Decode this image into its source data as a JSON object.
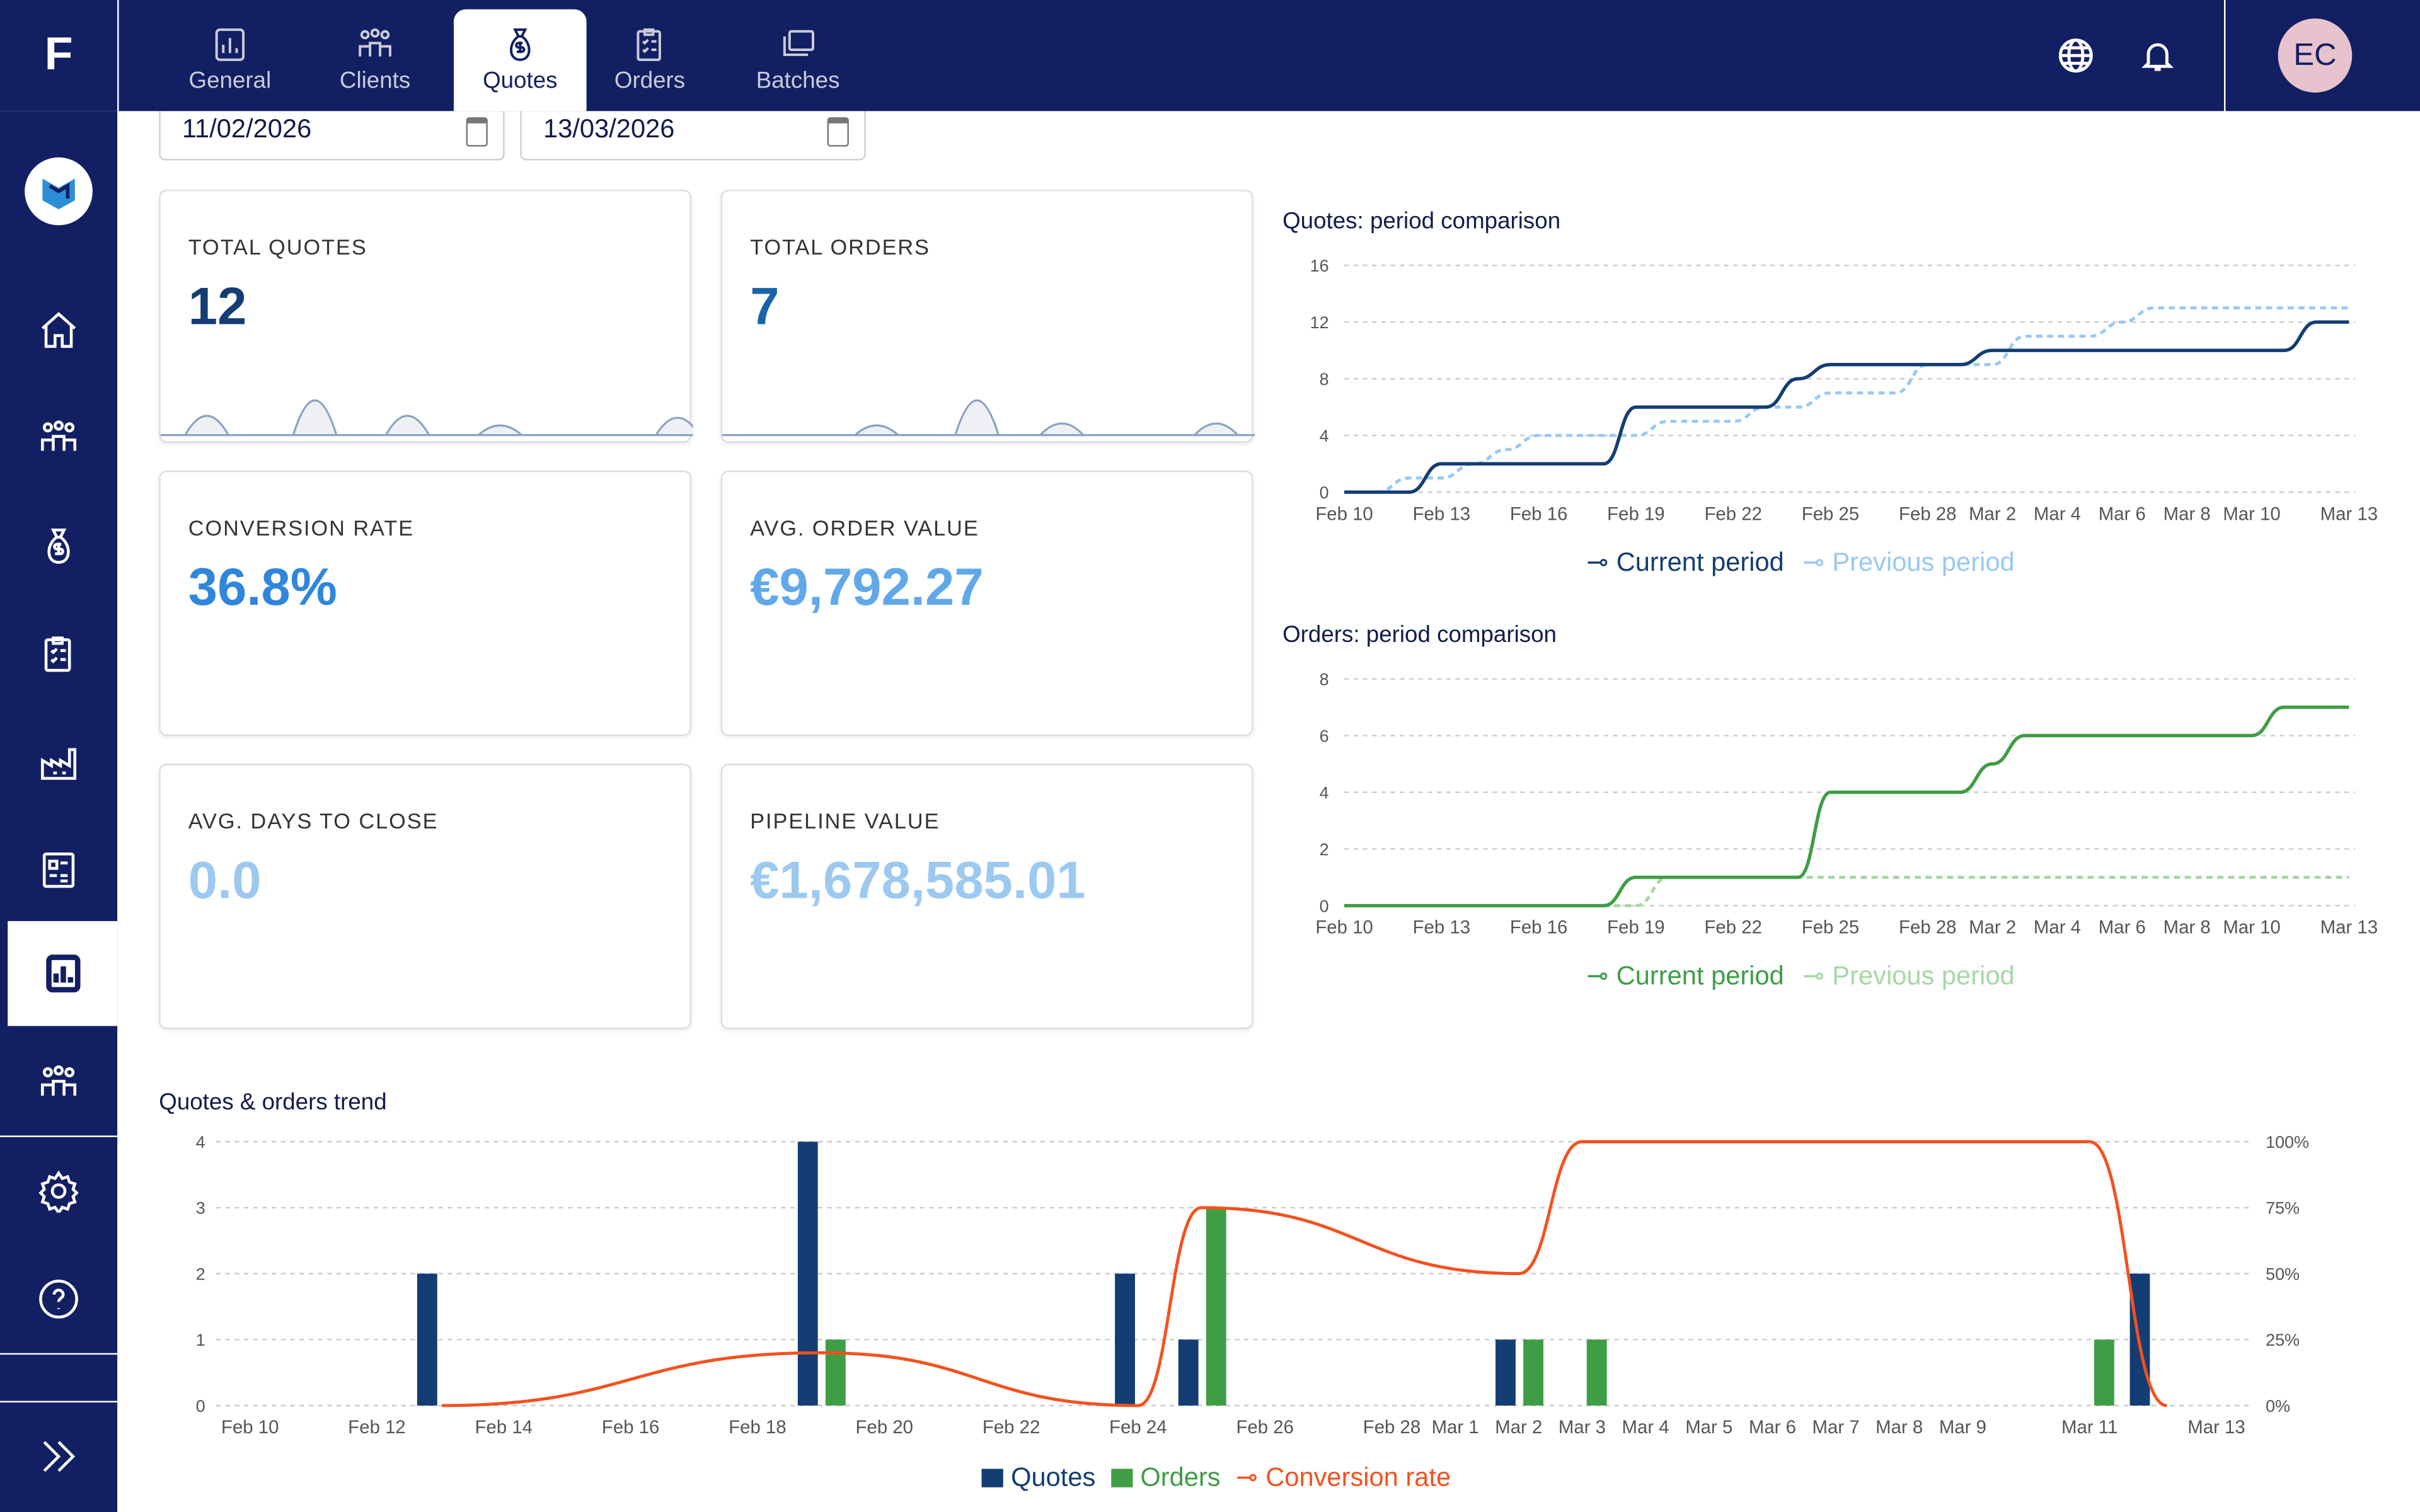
{
  "app": {
    "logo": "F",
    "user_initials": "EC"
  },
  "tabs": [
    {
      "label": "General",
      "icon": "bar-chart-icon"
    },
    {
      "label": "Clients",
      "icon": "users-icon"
    },
    {
      "label": "Quotes",
      "icon": "money-bag-icon",
      "active": true
    },
    {
      "label": "Orders",
      "icon": "clipboard-icon"
    },
    {
      "label": "Batches",
      "icon": "layers-icon"
    }
  ],
  "header_icons": [
    "globe-icon",
    "bell-icon"
  ],
  "sidebar": [
    {
      "icon": "brand-logo-icon"
    },
    {
      "icon": "home-icon"
    },
    {
      "icon": "users-icon"
    },
    {
      "icon": "money-bag-icon"
    },
    {
      "icon": "clipboard-icon"
    },
    {
      "icon": "factory-icon"
    },
    {
      "icon": "dashboard-icon"
    },
    {
      "icon": "bar-chart-icon",
      "active": true
    },
    {
      "icon": "team-icon"
    },
    {
      "icon": "gear-icon"
    },
    {
      "icon": "help-icon"
    },
    {
      "icon": "expand-icon"
    }
  ],
  "filters": {
    "start_date": "11/02/2026",
    "end_date": "13/03/2026"
  },
  "kpis": [
    {
      "label": "TOTAL QUOTES",
      "value": "12",
      "color": "#133d73"
    },
    {
      "label": "TOTAL ORDERS",
      "value": "7",
      "color": "#1764a8"
    },
    {
      "label": "CONVERSION RATE",
      "value": "36.8%",
      "color": "#2f86dc"
    },
    {
      "label": "AVG. ORDER VALUE",
      "value": "€9,792.27",
      "color": "#61a8e8"
    },
    {
      "label": "AVG. DAYS TO CLOSE",
      "value": "0.0",
      "color": "#9cc9f0"
    },
    {
      "label": "PIPELINE VALUE",
      "value": "€1,678,585.01",
      "color": "#9cc9f0"
    }
  ],
  "chart_data": [
    {
      "type": "line",
      "title": "Quotes: period comparison",
      "xlim": [
        "Feb 10",
        "Mar 13"
      ],
      "ylim": [
        0,
        16
      ],
      "yticks": [
        0,
        4,
        8,
        12,
        16
      ],
      "xticks": [
        "Feb 10",
        "Feb 13",
        "Feb 16",
        "Feb 19",
        "Feb 22",
        "Feb 25",
        "Feb 28",
        "Mar 2",
        "Mar 4",
        "Mar 6",
        "Mar 8",
        "Mar 10",
        "Mar 13"
      ],
      "x": [
        "Feb 10",
        "Feb 11",
        "Feb 12",
        "Feb 13",
        "Feb 14",
        "Feb 15",
        "Feb 16",
        "Feb 17",
        "Feb 18",
        "Feb 19",
        "Feb 20",
        "Feb 21",
        "Feb 22",
        "Feb 23",
        "Feb 24",
        "Feb 25",
        "Feb 26",
        "Feb 27",
        "Feb 28",
        "Mar 1",
        "Mar 2",
        "Mar 3",
        "Mar 4",
        "Mar 5",
        "Mar 6",
        "Mar 7",
        "Mar 8",
        "Mar 9",
        "Mar 10",
        "Mar 11",
        "Mar 12",
        "Mar 13"
      ],
      "series": [
        {
          "name": "Current period",
          "color": "#133d73",
          "values": [
            0,
            0,
            0,
            2,
            2,
            2,
            2,
            2,
            2,
            6,
            6,
            6,
            6,
            6,
            8,
            9,
            9,
            9,
            9,
            9,
            10,
            10,
            10,
            10,
            10,
            10,
            10,
            10,
            10,
            10,
            12,
            12
          ]
        },
        {
          "name": "Previous period",
          "color": "#99c8f3",
          "dashed": true,
          "values": [
            0,
            0,
            1,
            1,
            2,
            3,
            4,
            4,
            4,
            4,
            5,
            5,
            5,
            6,
            6,
            7,
            7,
            7,
            9,
            9,
            9,
            11,
            11,
            11,
            12,
            13,
            13,
            13,
            13,
            13,
            13,
            13
          ]
        }
      ]
    },
    {
      "type": "line",
      "title": "Orders: period comparison",
      "xlim": [
        "Feb 10",
        "Mar 13"
      ],
      "ylim": [
        0,
        8
      ],
      "yticks": [
        0,
        2,
        4,
        6,
        8
      ],
      "xticks": [
        "Feb 10",
        "Feb 13",
        "Feb 16",
        "Feb 19",
        "Feb 22",
        "Feb 25",
        "Feb 28",
        "Mar 2",
        "Mar 4",
        "Mar 6",
        "Mar 8",
        "Mar 10",
        "Mar 13"
      ],
      "series": [
        {
          "name": "Current period",
          "color": "#3f9d45",
          "values": [
            0,
            0,
            0,
            0,
            0,
            0,
            0,
            0,
            0,
            1,
            1,
            1,
            1,
            1,
            1,
            4,
            4,
            4,
            4,
            4,
            5,
            6,
            6,
            6,
            6,
            6,
            6,
            6,
            6,
            7,
            7,
            7
          ]
        },
        {
          "name": "Previous period",
          "color": "#a6d7a4",
          "dashed": true,
          "values": [
            0,
            0,
            0,
            0,
            0,
            0,
            0,
            0,
            0,
            0,
            1,
            1,
            1,
            1,
            1,
            1,
            1,
            1,
            1,
            1,
            1,
            1,
            1,
            1,
            1,
            1,
            1,
            1,
            1,
            1,
            1,
            1
          ]
        }
      ]
    },
    {
      "type": "bar",
      "title": "Quotes & orders trend",
      "ylim": [
        0,
        4
      ],
      "yticks": [
        0,
        1,
        2,
        3,
        4
      ],
      "y2ticks": [
        "0%",
        "25%",
        "50%",
        "75%",
        "100%"
      ],
      "xticks": [
        "Feb 10",
        "Feb 12",
        "Feb 14",
        "Feb 16",
        "Feb 18",
        "Feb 20",
        "Feb 22",
        "Feb 24",
        "Feb 26",
        "Feb 28",
        "Mar 1",
        "Mar 2",
        "Mar 3",
        "Mar 4",
        "Mar 5",
        "Mar 6",
        "Mar 7",
        "Mar 8",
        "Mar 9",
        "Mar 11",
        "Mar 13"
      ],
      "categories": [
        "Feb 13",
        "Feb 19",
        "Feb 24",
        "Feb 25",
        "Mar 2",
        "Mar 3",
        "Mar 11",
        "Mar 12"
      ],
      "series": [
        {
          "name": "Quotes",
          "color": "#133d73",
          "values": [
            2,
            4,
            2,
            1,
            1,
            0,
            0,
            2
          ]
        },
        {
          "name": "Orders",
          "color": "#3f9d45",
          "values": [
            0,
            1,
            0,
            3,
            1,
            1,
            1,
            0
          ]
        },
        {
          "name": "Conversion rate",
          "color": "#f4511e",
          "axis": "right",
          "values": [
            0,
            20,
            0,
            75,
            50,
            100,
            100,
            0
          ]
        }
      ]
    }
  ]
}
